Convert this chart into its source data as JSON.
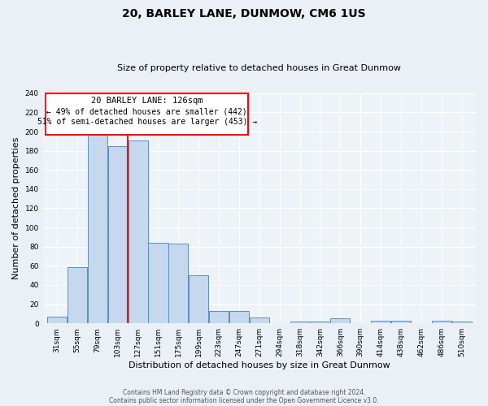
{
  "title": "20, BARLEY LANE, DUNMOW, CM6 1US",
  "subtitle": "Size of property relative to detached houses in Great Dunmow",
  "xlabel": "Distribution of detached houses by size in Great Dunmow",
  "ylabel": "Number of detached properties",
  "bar_labels": [
    "31sqm",
    "55sqm",
    "79sqm",
    "103sqm",
    "127sqm",
    "151sqm",
    "175sqm",
    "199sqm",
    "223sqm",
    "247sqm",
    "271sqm",
    "294sqm",
    "318sqm",
    "342sqm",
    "366sqm",
    "390sqm",
    "414sqm",
    "438sqm",
    "462sqm",
    "486sqm",
    "510sqm"
  ],
  "bar_values": [
    7,
    59,
    200,
    185,
    191,
    84,
    83,
    50,
    13,
    13,
    6,
    0,
    2,
    2,
    5,
    0,
    3,
    3,
    0,
    3,
    2
  ],
  "bar_color": "#c5d8ed",
  "bar_edge_color": "#5a8fc0",
  "ylim": [
    0,
    240
  ],
  "yticks": [
    0,
    20,
    40,
    60,
    80,
    100,
    120,
    140,
    160,
    180,
    200,
    220,
    240
  ],
  "annotation_title": "20 BARLEY LANE: 126sqm",
  "annotation_line1": "← 49% of detached houses are smaller (442)",
  "annotation_line2": "51% of semi-detached houses are larger (453) →",
  "footer_line1": "Contains HM Land Registry data © Crown copyright and database right 2024.",
  "footer_line2": "Contains public sector information licensed under the Open Government Licence v3.0.",
  "bg_color": "#eaf0f6",
  "plot_bg_color": "#eef3f8"
}
